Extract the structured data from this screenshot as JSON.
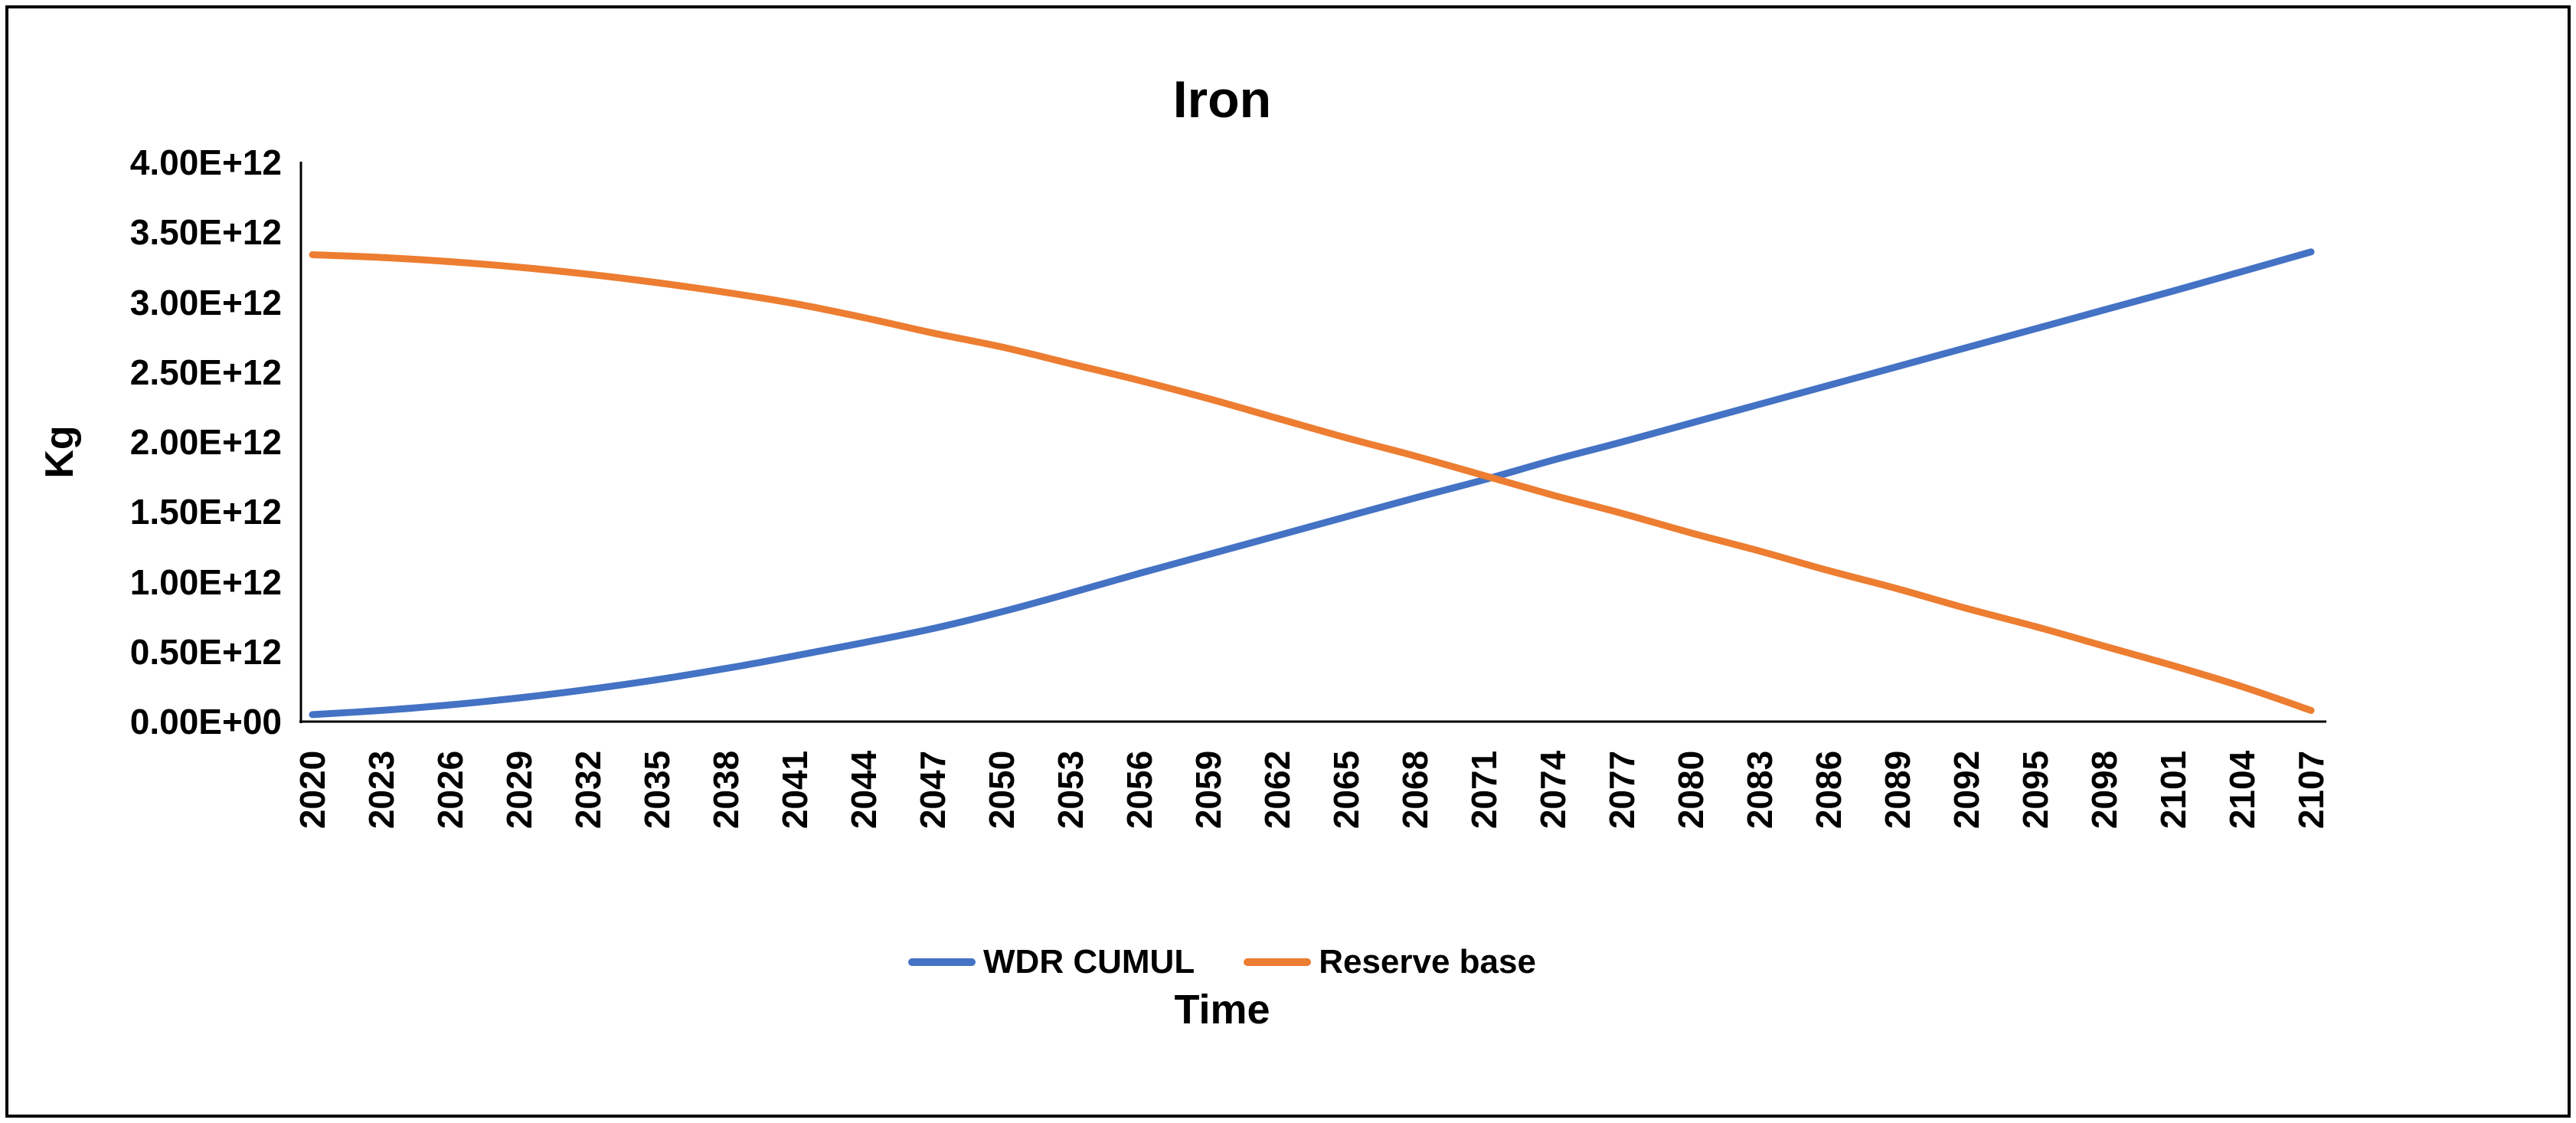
{
  "chart": {
    "title": "Iron",
    "y_axis": {
      "title": "Kg",
      "tick_labels": [
        "0.00E+00",
        "0.50E+12",
        "1.00E+12",
        "1.50E+12",
        "2.00E+12",
        "2.50E+12",
        "3.00E+12",
        "3.50E+12",
        "4.00E+12"
      ]
    },
    "x_axis": {
      "title": "Time",
      "tick_labels": [
        "2020",
        "2023",
        "2026",
        "2029",
        "2032",
        "2035",
        "2038",
        "2041",
        "2044",
        "2047",
        "2050",
        "2053",
        "2056",
        "2059",
        "2062",
        "2065",
        "2068",
        "2071",
        "2074",
        "2077",
        "2080",
        "2083",
        "2086",
        "2089",
        "2092",
        "2095",
        "2098",
        "2101",
        "2104",
        "2107"
      ]
    },
    "legend": [
      {
        "label": "WDR CUMUL",
        "color": "#4472C4"
      },
      {
        "label": "Reserve base",
        "color": "#ED7D31"
      }
    ],
    "colors": {
      "axis": "#000000",
      "background": "#ffffff",
      "border": "#000000"
    }
  },
  "chart_data": {
    "type": "line",
    "title": "Iron",
    "xlabel": "Time",
    "ylabel": "Kg",
    "unit": "kg",
    "x_range": [
      2020,
      2107
    ],
    "ylim": [
      0,
      4000000000000.0
    ],
    "y_tick_step": 500000000000.0,
    "grid": false,
    "legend_position": "bottom-center",
    "line_style": "smooth",
    "categories": [
      2020,
      2023,
      2026,
      2029,
      2032,
      2035,
      2038,
      2041,
      2044,
      2047,
      2050,
      2053,
      2056,
      2059,
      2062,
      2065,
      2068,
      2071,
      2074,
      2077,
      2080,
      2083,
      2086,
      2089,
      2092,
      2095,
      2098,
      2101,
      2104,
      2107
    ],
    "series": [
      {
        "name": "WDR CUMUL",
        "color": "#4472C4",
        "values": [
          50000000000.0,
          80000000000.0,
          120000000000.0,
          170000000000.0,
          230000000000.0,
          300000000000.0,
          380000000000.0,
          470000000000.0,
          565000000000.0,
          665000000000.0,
          785000000000.0,
          920000000000.0,
          1060000000000.0,
          1195000000000.0,
          1330000000000.0,
          1465000000000.0,
          1600000000000.0,
          1730000000000.0,
          1870000000000.0,
          2000000000000.0,
          2135000000000.0,
          2270000000000.0,
          2405000000000.0,
          2540000000000.0,
          2675000000000.0,
          2810000000000.0,
          2945000000000.0,
          3080000000000.0,
          3220000000000.0,
          3360000000000.0
        ]
      },
      {
        "name": "Reserve base",
        "color": "#ED7D31",
        "values": [
          3340000000000.0,
          3320000000000.0,
          3290000000000.0,
          3250000000000.0,
          3200000000000.0,
          3140000000000.0,
          3070000000000.0,
          2990000000000.0,
          2890000000000.0,
          2780000000000.0,
          2680000000000.0,
          2560000000000.0,
          2440000000000.0,
          2310000000000.0,
          2170000000000.0,
          2030000000000.0,
          1900000000000.0,
          1760000000000.0,
          1620000000000.0,
          1490000000000.0,
          1350000000000.0,
          1220000000000.0,
          1080000000000.0,
          950000000000.0,
          810000000000.0,
          680000000000.0,
          540000000000.0,
          400000000000.0,
          250000000000.0,
          80000000000.0
        ]
      }
    ],
    "annotations": {
      "crossover": {
        "year": 2071.5,
        "value": 1740000000000.0
      }
    }
  }
}
